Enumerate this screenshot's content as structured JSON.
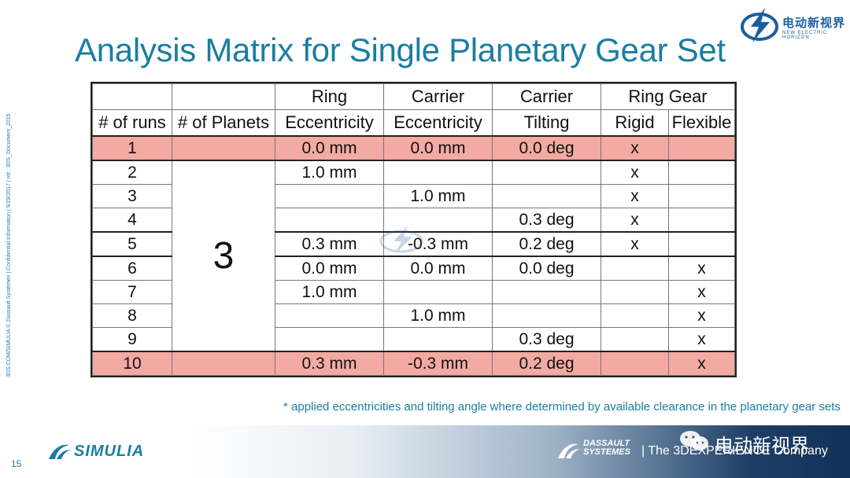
{
  "slide": {
    "title": "Analysis Matrix for Single Planetary Gear Set",
    "side_text": "3DS.COM/SIMULIA © Dassault Systèmes | Confidential Information | 9/29/2017 | ref.: 3DS_Document_2015",
    "footnote": "* applied eccentricities and tilting angle where determined by available clearance in the planetary gear sets",
    "page_number": "15"
  },
  "branding": {
    "top_right_cn": "电动新视界",
    "top_right_en": "NEW ELECTRIC HORIZON",
    "simulia": "SIMULIA",
    "dassault": "DASSAULT SYSTEMES",
    "tagline": "| The 3DEXPERIENCE Company",
    "wechat_label": "电动新视界"
  },
  "table": {
    "header_row1": [
      "",
      "",
      "Ring",
      "Carrier",
      "Carrier",
      "Ring Gear"
    ],
    "header_row2": [
      "# of runs",
      "# of Planets",
      "Eccentricity",
      "Eccentricity",
      "Tilting",
      "Rigid",
      "Flexible"
    ],
    "planets_value": "3",
    "rows": [
      {
        "run": "1",
        "ring": "0.0 mm",
        "carrier_ecc": "0.0 mm",
        "tilt": "0.0 deg",
        "rigid": "x",
        "flexible": ""
      },
      {
        "run": "2",
        "ring": "1.0 mm",
        "carrier_ecc": "",
        "tilt": "",
        "rigid": "x",
        "flexible": ""
      },
      {
        "run": "3",
        "ring": "",
        "carrier_ecc": "1.0 mm",
        "tilt": "",
        "rigid": "x",
        "flexible": ""
      },
      {
        "run": "4",
        "ring": "",
        "carrier_ecc": "",
        "tilt": "0.3 deg",
        "rigid": "x",
        "flexible": ""
      },
      {
        "run": "5",
        "ring": "0.3 mm",
        "carrier_ecc": "-0.3 mm",
        "tilt": "0.2 deg",
        "rigid": "x",
        "flexible": ""
      },
      {
        "run": "6",
        "ring": "0.0 mm",
        "carrier_ecc": "0.0 mm",
        "tilt": "0.0 deg",
        "rigid": "",
        "flexible": "x"
      },
      {
        "run": "7",
        "ring": "1.0 mm",
        "carrier_ecc": "",
        "tilt": "",
        "rigid": "",
        "flexible": "x"
      },
      {
        "run": "8",
        "ring": "",
        "carrier_ecc": "1.0 mm",
        "tilt": "",
        "rigid": "",
        "flexible": "x"
      },
      {
        "run": "9",
        "ring": "",
        "carrier_ecc": "",
        "tilt": "0.3 deg",
        "rigid": "",
        "flexible": "x"
      },
      {
        "run": "10",
        "ring": "0.3 mm",
        "carrier_ecc": "-0.3 mm",
        "tilt": "0.2 deg",
        "rigid": "",
        "flexible": "x"
      }
    ]
  },
  "colors": {
    "title": "#1a7ea3",
    "highlight_row": "#f2aaa2"
  }
}
